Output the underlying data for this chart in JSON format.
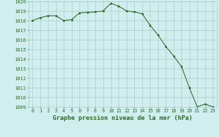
{
  "x": [
    0,
    1,
    2,
    3,
    4,
    5,
    6,
    7,
    8,
    9,
    10,
    11,
    12,
    13,
    14,
    15,
    16,
    17,
    18,
    19,
    20,
    21,
    22,
    23
  ],
  "y": [
    1018.0,
    1018.3,
    1018.5,
    1018.5,
    1018.0,
    1018.1,
    1018.8,
    1018.85,
    1018.9,
    1019.0,
    1019.8,
    1019.5,
    1019.0,
    1018.9,
    1018.7,
    1017.5,
    1016.5,
    1015.3,
    1014.3,
    1013.2,
    1011.0,
    1009.0,
    1009.3,
    1009.0
  ],
  "line_color": "#2d6b2d",
  "marker_color": "#2d6b2d",
  "bg_color": "#d0eeee",
  "grid_color": "#b0c8c8",
  "xlabel": "Graphe pression niveau de la mer (hPa)",
  "ylim": [
    1009,
    1020
  ],
  "xlim": [
    -0.5,
    23.5
  ],
  "yticks": [
    1009,
    1010,
    1011,
    1012,
    1013,
    1014,
    1015,
    1016,
    1017,
    1018,
    1019,
    1020
  ],
  "xticks": [
    0,
    1,
    2,
    3,
    4,
    5,
    6,
    7,
    8,
    9,
    10,
    11,
    12,
    13,
    14,
    15,
    16,
    17,
    18,
    19,
    20,
    21,
    22,
    23
  ],
  "tick_color": "#2d6b2d",
  "xlabel_fontsize": 6.5,
  "tick_fontsize": 5.0
}
